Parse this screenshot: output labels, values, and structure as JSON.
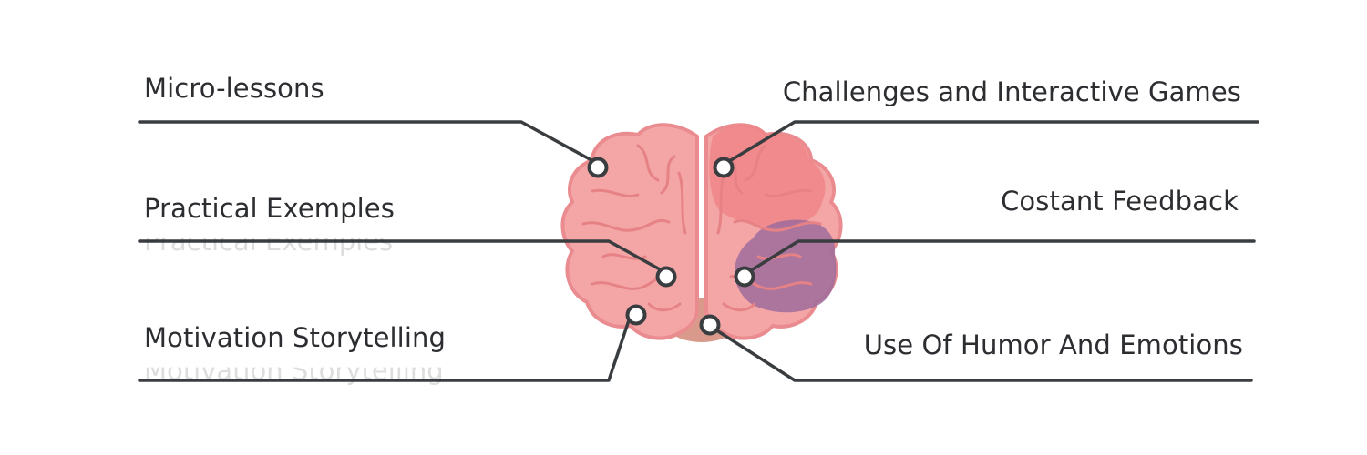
{
  "diagram": {
    "labels": {
      "micro_lessons": "Micro-lessons",
      "practical_examples": "Practical Exemples",
      "motivation_storytelling": "Motivation Storytelling",
      "challenges_games": "Challenges and Interactive Games",
      "constant_feedback": "Costant Feedback",
      "humor_emotions": "Use Of Humor And Emotions"
    }
  },
  "colors": {
    "line": "#3a3d40",
    "brain_fill": "#f3a3a3",
    "brain_stroke": "#e67f82",
    "highlight_red": "#f08587",
    "highlight_purple": "#9b6a9c",
    "cerebellum": "#d99a8c"
  }
}
